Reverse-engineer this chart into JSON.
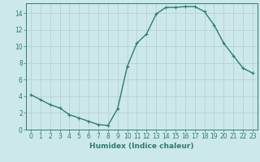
{
  "x": [
    0,
    1,
    2,
    3,
    4,
    5,
    6,
    7,
    8,
    9,
    10,
    11,
    12,
    13,
    14,
    15,
    16,
    17,
    18,
    19,
    20,
    21,
    22,
    23
  ],
  "y": [
    4.2,
    3.6,
    3.0,
    2.6,
    1.8,
    1.4,
    1.0,
    0.6,
    0.5,
    2.5,
    7.6,
    10.4,
    11.5,
    13.9,
    14.7,
    14.7,
    14.8,
    14.8,
    14.2,
    12.6,
    10.4,
    8.9,
    7.4,
    6.8
  ],
  "line_color": "#2d7d6e",
  "marker": "+",
  "marker_size": 3,
  "bg_color": "#cce8e8",
  "grid_major_color": "#b8d4d4",
  "grid_minor_color": "#d4e8e8",
  "xlabel": "Humidex (Indice chaleur)",
  "xlim": [
    -0.5,
    23.5
  ],
  "ylim": [
    0,
    15.2
  ],
  "yticks": [
    0,
    2,
    4,
    6,
    8,
    10,
    12,
    14
  ],
  "xticks": [
    0,
    1,
    2,
    3,
    4,
    5,
    6,
    7,
    8,
    9,
    10,
    11,
    12,
    13,
    14,
    15,
    16,
    17,
    18,
    19,
    20,
    21,
    22,
    23
  ],
  "xlabel_fontsize": 6.5,
  "tick_fontsize": 5.5,
  "line_width": 1.0
}
